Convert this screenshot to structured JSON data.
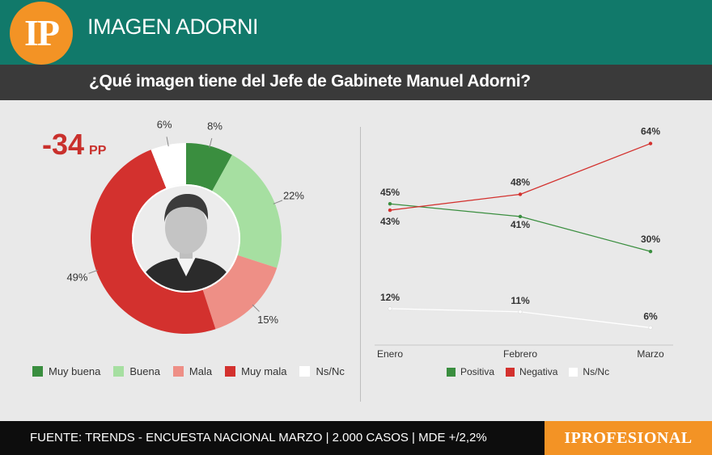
{
  "header": {
    "logo_text": "IP",
    "title": "IMAGEN ADORNI"
  },
  "question": "¿Qué imagen tiene del Jefe de Gabinete Manuel Adorni?",
  "difference": {
    "value": "-34",
    "unit": "PP"
  },
  "colors": {
    "header_bg": "#11796a",
    "muy_buena": "#3a8e3f",
    "buena": "#a6dfa1",
    "mala": "#ee8f86",
    "muy_mala": "#d3312e",
    "nsnc": "#ffffff",
    "positiva": "#3a8e3f",
    "negativa": "#d3312e"
  },
  "chart_data": [
    {
      "type": "pie",
      "variant": "donut",
      "categories": [
        "Muy buena",
        "Buena",
        "Mala",
        "Muy mala",
        "Ns/Nc"
      ],
      "values": [
        8,
        22,
        15,
        49,
        6
      ],
      "labels": [
        "8%",
        "22%",
        "15%",
        "49%",
        "6%"
      ],
      "legend_position": "bottom"
    },
    {
      "type": "line",
      "categories": [
        "Enero",
        "Febrero",
        "Marzo"
      ],
      "series": [
        {
          "name": "Positiva",
          "values": [
            45,
            41,
            30
          ],
          "labels": [
            "45%",
            "41%",
            "30%"
          ]
        },
        {
          "name": "Negativa",
          "values": [
            43,
            48,
            64
          ],
          "labels": [
            "43%",
            "48%",
            "64%"
          ]
        },
        {
          "name": "Ns/Nc",
          "values": [
            12,
            11,
            6
          ],
          "labels": [
            "12%",
            "11%",
            "6%"
          ]
        }
      ],
      "ylim": [
        0,
        70
      ],
      "grid": false,
      "legend_position": "bottom"
    }
  ],
  "footer": {
    "source": "FUENTE: TRENDS - ENCUESTA NACIONAL MARZO | 2.000 CASOS | MDE +/2,2%",
    "brand": "IPROFESIONAL"
  }
}
